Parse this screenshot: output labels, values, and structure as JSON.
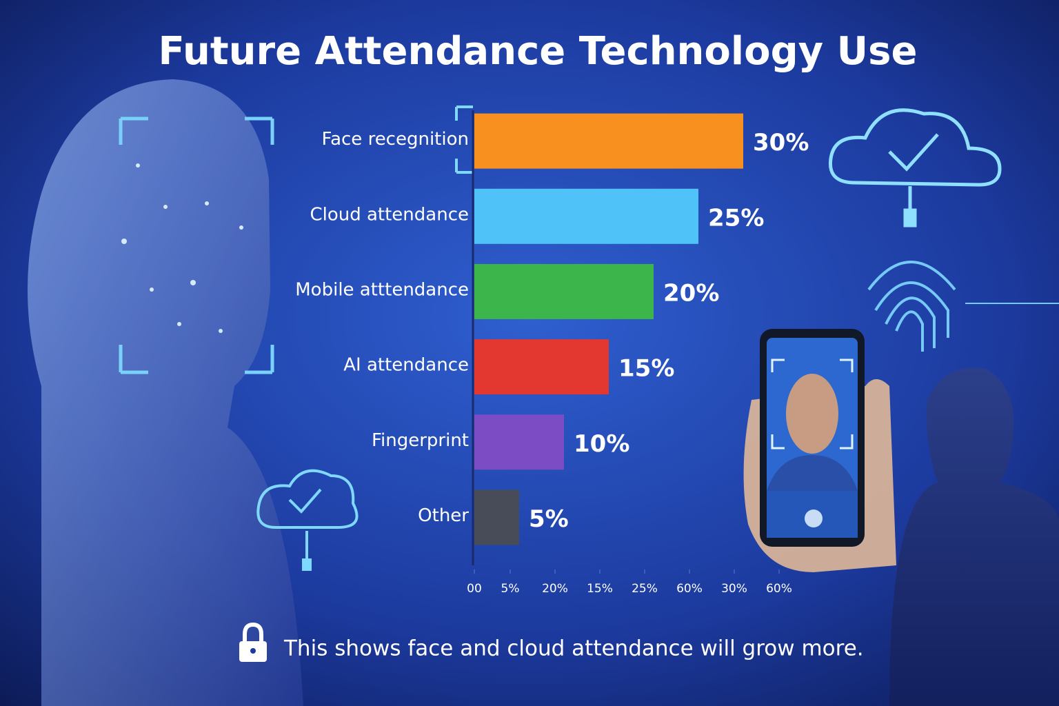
{
  "chart_data": {
    "type": "bar",
    "orientation": "horizontal",
    "title": "Future Attendance Technology Use",
    "categories": [
      "Face recegnition",
      "Cloud attendance",
      "Mobile atttendance",
      "AI attendance",
      "Fingerprint",
      "Other"
    ],
    "values": [
      30,
      25,
      20,
      15,
      10,
      5
    ],
    "value_labels": [
      "30%",
      "25%",
      "20%",
      "15%",
      "10%",
      "5%"
    ],
    "colors": [
      "#f7901e",
      "#4fc3f7",
      "#3cb54a",
      "#e2382f",
      "#7b4cc4",
      "#474c58"
    ],
    "xlim": [
      0,
      35
    ],
    "xticks": [
      {
        "value": 0,
        "label": "00"
      },
      {
        "value": 4,
        "label": "5%"
      },
      {
        "value": 9,
        "label": "20%"
      },
      {
        "value": 14,
        "label": "15%"
      },
      {
        "value": 19,
        "label": "25%"
      },
      {
        "value": 24,
        "label": "60%"
      },
      {
        "value": 29,
        "label": "30%"
      },
      {
        "value": 34,
        "label": "60%"
      }
    ],
    "caption": "This shows face and cloud attendance will grow more."
  }
}
